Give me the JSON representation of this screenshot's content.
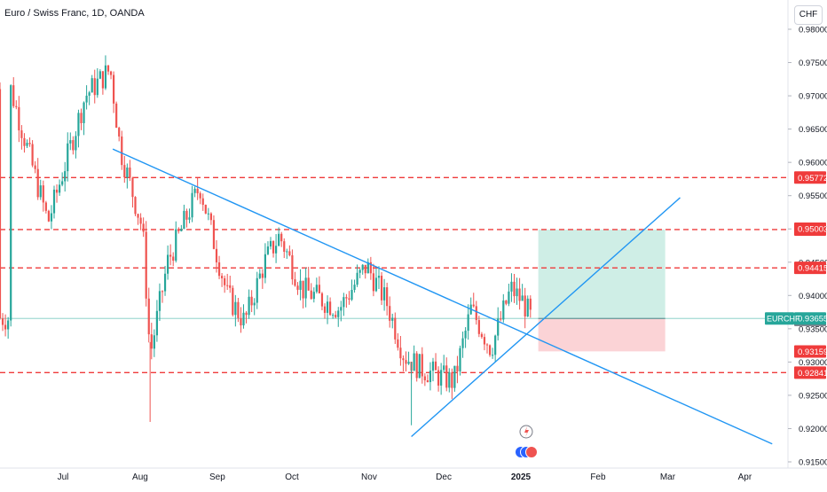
{
  "header": {
    "title": "Euro / Swiss Franc, 1D, OANDA",
    "currency_button": "CHF"
  },
  "colors": {
    "up": "#26a69a",
    "down": "#ef5350",
    "trendline": "#2196f3",
    "level": "#ef3b3b",
    "target_zone": "#cfeee6",
    "stop_zone": "#fbd3d6",
    "symbol_badge": "#26a69a",
    "last_close_badge": "#787b86"
  },
  "chart_data": {
    "type": "candlestick",
    "symbol": "EURCHF",
    "ylim": [
      0.915,
      0.98
    ],
    "y_ticks": [
      "0.91500",
      "0.92000",
      "0.92500",
      "0.93000",
      "0.93500",
      "0.94000",
      "0.94500",
      "0.95000",
      "0.95500",
      "0.96000",
      "0.96500",
      "0.97000",
      "0.97500",
      "0.98000"
    ],
    "x_ticks": [
      {
        "label": "Jul",
        "date": "2024-07-01"
      },
      {
        "label": "Aug",
        "date": "2024-08-01"
      },
      {
        "label": "Sep",
        "date": "2024-09-01"
      },
      {
        "label": "Oct",
        "date": "2024-10-01"
      },
      {
        "label": "Nov",
        "date": "2024-11-01"
      },
      {
        "label": "Dec",
        "date": "2024-12-01"
      },
      {
        "label": "2025",
        "date": "2025-01-01",
        "bold": true
      },
      {
        "label": "Feb",
        "date": "2025-02-01"
      },
      {
        "label": "Mar",
        "date": "2025-03-01"
      },
      {
        "label": "Apr",
        "date": "2025-04-01"
      }
    ],
    "horizontal_levels": [
      {
        "value": 0.95772,
        "label": "0.95772",
        "style": "dashed",
        "color": "#ef3b3b"
      },
      {
        "value": 0.9499,
        "label": "0.94990",
        "style": "dashed",
        "color": "#ef3b3b"
      },
      {
        "value": 0.94415,
        "label": "0.94415",
        "style": "dashed",
        "color": "#ef3b3b"
      },
      {
        "value": 0.92841,
        "label": "0.92841",
        "style": "dashed",
        "color": "#ef3b3b"
      }
    ],
    "price_labels": [
      {
        "value": 0.95003,
        "label": "0.95003",
        "color": "#ef3b3b"
      },
      {
        "value": 0.93159,
        "label": "0.93159",
        "color": "#ef3b3b"
      },
      {
        "value": 0.93633,
        "label": "0.93633",
        "color": "#787b86"
      }
    ],
    "current_price": {
      "symbol": "EURCHF",
      "value": 0.93655,
      "label": "0.93655"
    },
    "trendlines": [
      {
        "from": [
          "2024-07-21",
          0.962
        ],
        "to": [
          "2025-04-12",
          0.9177
        ]
      },
      {
        "from": [
          "2024-11-18",
          0.9188
        ],
        "to": [
          "2025-03-06",
          0.9547
        ]
      }
    ],
    "position": {
      "start": "2025-01-08",
      "end": "2025-02-28",
      "entry": 0.93655,
      "target": 0.9499,
      "stop": 0.9316
    },
    "events": [
      {
        "date": "2025-01-01",
        "type": "dividend-flash"
      }
    ],
    "candles_daily": [
      [
        0.971,
        0.9722,
        0.968,
        0.9695
      ],
      [
        0.9695,
        0.97,
        0.964,
        0.9655
      ],
      [
        0.9655,
        0.9672,
        0.962,
        0.963
      ],
      [
        0.963,
        0.965,
        0.9585,
        0.96
      ],
      [
        0.96,
        0.9612,
        0.954,
        0.956
      ],
      [
        0.956,
        0.958,
        0.9495,
        0.951
      ],
      [
        0.951,
        0.954,
        0.948,
        0.953
      ],
      [
        0.953,
        0.9575,
        0.952,
        0.9568
      ],
      [
        0.9568,
        0.9585,
        0.951,
        0.9525
      ],
      [
        0.9525,
        0.956,
        0.9495,
        0.955
      ],
      [
        0.955,
        0.961,
        0.9545,
        0.9598
      ],
      [
        0.9598,
        0.964,
        0.959,
        0.9632
      ],
      [
        0.9632,
        0.969,
        0.9628,
        0.968
      ],
      [
        0.968,
        0.971,
        0.967,
        0.9702
      ],
      [
        0.9702,
        0.9725,
        0.968,
        0.9715
      ],
      [
        0.9715,
        0.9745,
        0.9705,
        0.9735
      ],
      [
        0.9735,
        0.976,
        0.97,
        0.9712
      ],
      [
        0.9712,
        0.9735,
        0.969,
        0.9728
      ],
      [
        0.9728,
        0.9755,
        0.9715,
        0.9745
      ],
      [
        0.9745,
        0.9765,
        0.972,
        0.973
      ],
      [
        0.973,
        0.9762,
        0.97,
        0.9715
      ],
      [
        0.9715,
        0.973,
        0.968,
        0.969
      ],
      [
        0.969,
        0.97,
        0.966,
        0.967
      ],
      [
        0.967,
        0.9675,
        0.961,
        0.962
      ],
      [
        0.962,
        0.964,
        0.96,
        0.9632
      ],
      [
        0.9632,
        0.966,
        0.962,
        0.9645
      ],
      [
        0.9645,
        0.9655,
        0.961,
        0.9618
      ],
      [
        0.9618,
        0.9625,
        0.958,
        0.959
      ],
      [
        0.959,
        0.9605,
        0.9555,
        0.9565
      ],
      [
        0.9565,
        0.9575,
        0.952,
        0.9532
      ],
      [
        0.9532,
        0.955,
        0.9505,
        0.954
      ],
      [
        0.954,
        0.956,
        0.952,
        0.9528
      ],
      [
        0.9528,
        0.9535,
        0.948,
        0.9492
      ],
      [
        0.9492,
        0.95,
        0.942,
        0.943
      ],
      [
        0.943,
        0.944,
        0.937,
        0.9385
      ],
      [
        0.9385,
        0.9395,
        0.933,
        0.9345
      ],
      [
        0.9345,
        0.935,
        0.92,
        0.931
      ],
      [
        0.931,
        0.94,
        0.93,
        0.9395
      ],
      [
        0.9395,
        0.945,
        0.939,
        0.944
      ],
      [
        0.944,
        0.949,
        0.943,
        0.9475
      ],
      [
        0.9475,
        0.95,
        0.945,
        0.9462
      ],
      [
        0.9462,
        0.951,
        0.9455,
        0.95
      ],
      [
        0.95,
        0.9525,
        0.948,
        0.951
      ],
      [
        0.951,
        0.954,
        0.95,
        0.953
      ],
      [
        0.953,
        0.957,
        0.952,
        0.956
      ],
      [
        0.956,
        0.9575,
        0.952,
        0.953
      ],
      [
        0.953,
        0.9545,
        0.949,
        0.95
      ],
      [
        0.95,
        0.951,
        0.946,
        0.947
      ],
      [
        0.947,
        0.948,
        0.942,
        0.943
      ],
      [
        0.943,
        0.9445,
        0.9395,
        0.9405
      ],
      [
        0.9405,
        0.942,
        0.937,
        0.938
      ],
      [
        0.938,
        0.94,
        0.935,
        0.939
      ],
      [
        0.939,
        0.941,
        0.936,
        0.9368
      ],
      [
        0.9368,
        0.938,
        0.933,
        0.9345
      ],
      [
        0.9345,
        0.9375,
        0.9335,
        0.937
      ],
      [
        0.937,
        0.942,
        0.936,
        0.941
      ],
      [
        0.941,
        0.943,
        0.938,
        0.9392
      ],
      [
        0.9392,
        0.94,
        0.9355,
        0.9362
      ],
      [
        0.9362,
        0.938,
        0.933,
        0.934
      ],
      [
        0.934,
        0.936,
        0.931,
        0.935
      ]
    ]
  }
}
